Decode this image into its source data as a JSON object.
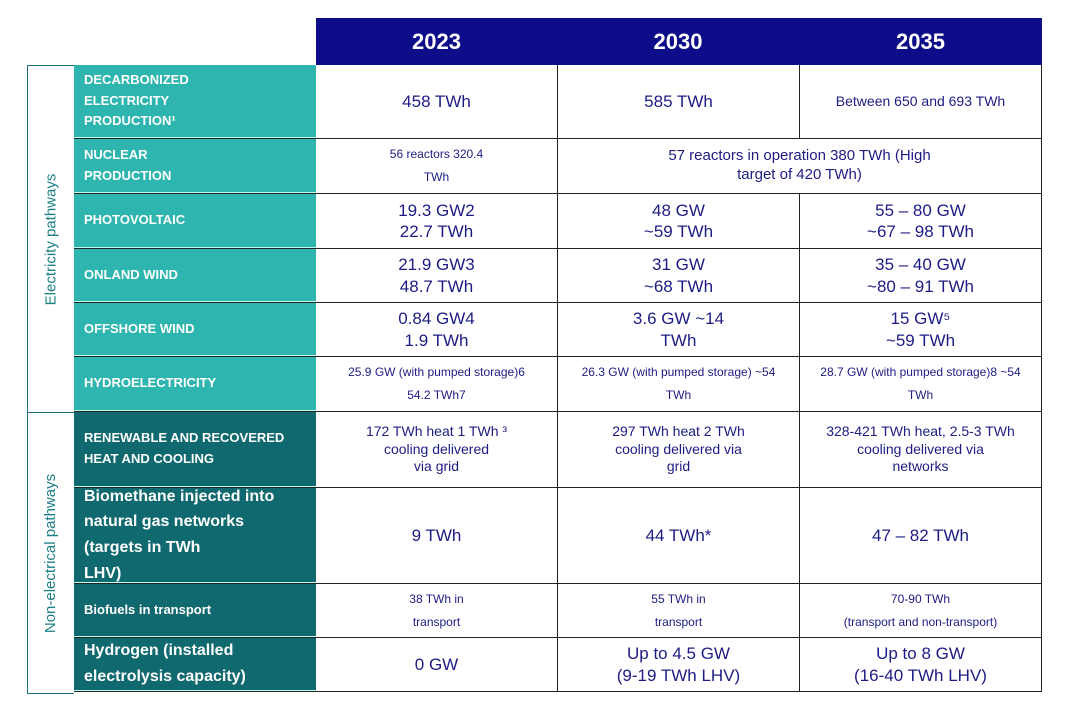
{
  "headers": [
    "2023",
    "2030",
    "2035"
  ],
  "groups": {
    "electricity": "Electricity pathways",
    "non_electrical": "Non-electrical pathways"
  },
  "rows": [
    {
      "label": "DECARBONIZED\nELECTRICITY\nPRODUCTION¹",
      "v2023": "458 TWh",
      "v2030": "585 TWh",
      "v2035": "Between 650 and 693 TWh"
    },
    {
      "label": "NUCLEAR\nPRODUCTION",
      "v2023": "56 reactors 320.4\nTWh",
      "v2030_2035": "57 reactors in operation 380 TWh (High\ntarget of 420 TWh)"
    },
    {
      "label": "PHOTOVOLTAIC",
      "v2023": "19.3 GW2\n22.7 TWh",
      "v2030": "48 GW\n~59 TWh",
      "v2035": "55 – 80 GW\n~67 – 98 TWh"
    },
    {
      "label": "ONLAND WIND",
      "v2023": "21.9 GW3\n48.7 TWh",
      "v2030": "31 GW\n~68 TWh",
      "v2035": "35 – 40 GW\n~80 – 91 TWh"
    },
    {
      "label": "OFFSHORE WIND",
      "v2023": "0.84 GW4\n1.9 TWh",
      "v2030": "3.6 GW ~14\nTWh",
      "v2035": "15 GW⁵\n~59 TWh"
    },
    {
      "label": "HYDROELECTRICITY",
      "v2023": "25.9 GW (with pumped storage)6\n54.2 TWh7",
      "v2030": "26.3 GW (with pumped storage) ~54\nTWh",
      "v2035": "28.7 GW (with pumped storage)8 ~54\nTWh"
    },
    {
      "label": "RENEWABLE AND RECOVERED\nHEAT AND COOLING",
      "v2023": "172 TWh heat 1 TWh ³\ncooling delivered\nvia grid",
      "v2030": "297 TWh heat 2 TWh\ncooling delivered via\ngrid",
      "v2035": "328-421 TWh heat, 2.5-3 TWh\ncooling delivered via\nnetworks"
    },
    {
      "label": "Biomethane injected into\nnatural gas networks\n(targets in TWh\nLHV)",
      "v2023": "9 TWh",
      "v2030": "44 TWh*",
      "v2035": "47 – 82 TWh"
    },
    {
      "label": "Biofuels in transport",
      "v2023": "38 TWh in\ntransport",
      "v2030": "55 TWh in\ntransport",
      "v2035": "70-90 TWh\n(transport and non-transport)"
    },
    {
      "label": "Hydrogen (installed\nelectrolysis capacity)",
      "v2023": "0 GW",
      "v2030": "Up to 4.5 GW\n(9-19 TWh LHV)",
      "v2035": "Up to 8 GW\n(16-40 TWh LHV)"
    }
  ],
  "colors": {
    "header": "#0d0d8a",
    "electricity_label": "#2fb5b0",
    "non_electrical_label": "#10696f",
    "value_text": "#1c1c84"
  }
}
